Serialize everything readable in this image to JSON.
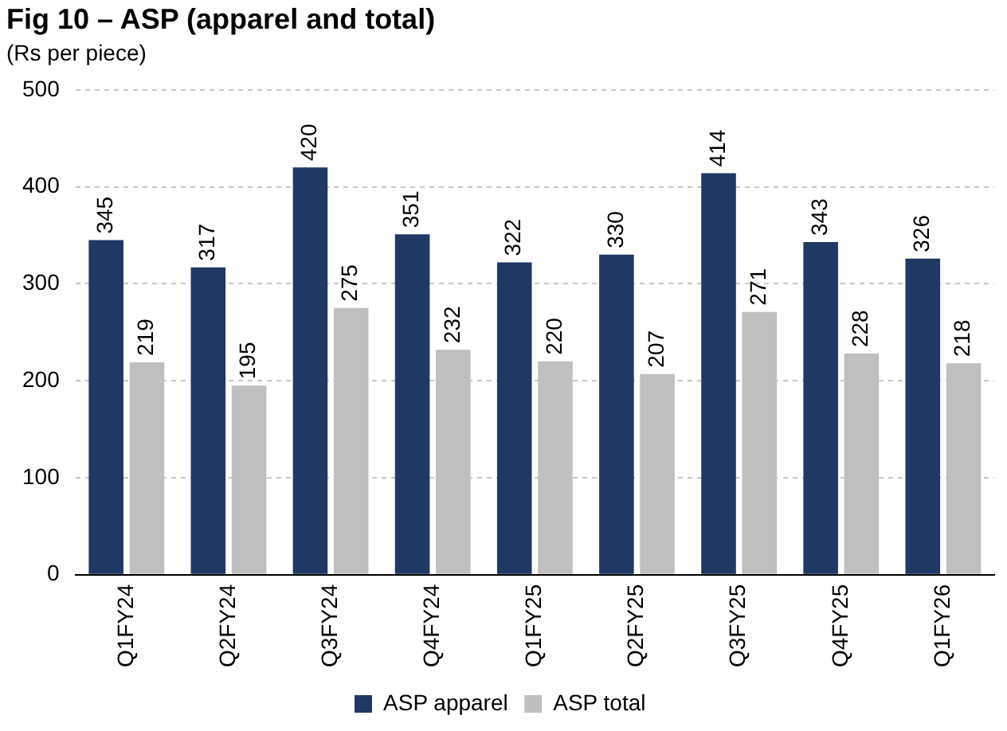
{
  "chart_data": {
    "type": "bar",
    "title": "Fig 10 – ASP (apparel and total)",
    "subtitle": "(Rs per piece)",
    "categories": [
      "Q1FY24",
      "Q2FY24",
      "Q3FY24",
      "Q4FY24",
      "Q1FY25",
      "Q2FY25",
      "Q3FY25",
      "Q4FY25",
      "Q1FY26"
    ],
    "series": [
      {
        "name": "ASP apparel",
        "color": "#1f3864",
        "values": [
          345,
          317,
          420,
          351,
          322,
          330,
          414,
          343,
          326
        ]
      },
      {
        "name": "ASP total",
        "color": "#bfbfbf",
        "values": [
          219,
          195,
          275,
          232,
          220,
          207,
          271,
          228,
          218
        ]
      }
    ],
    "ylim": [
      0,
      500
    ],
    "yticks": [
      0,
      100,
      200,
      300,
      400,
      500
    ],
    "grid": "y",
    "legend": "bottom",
    "data_labels": true
  }
}
